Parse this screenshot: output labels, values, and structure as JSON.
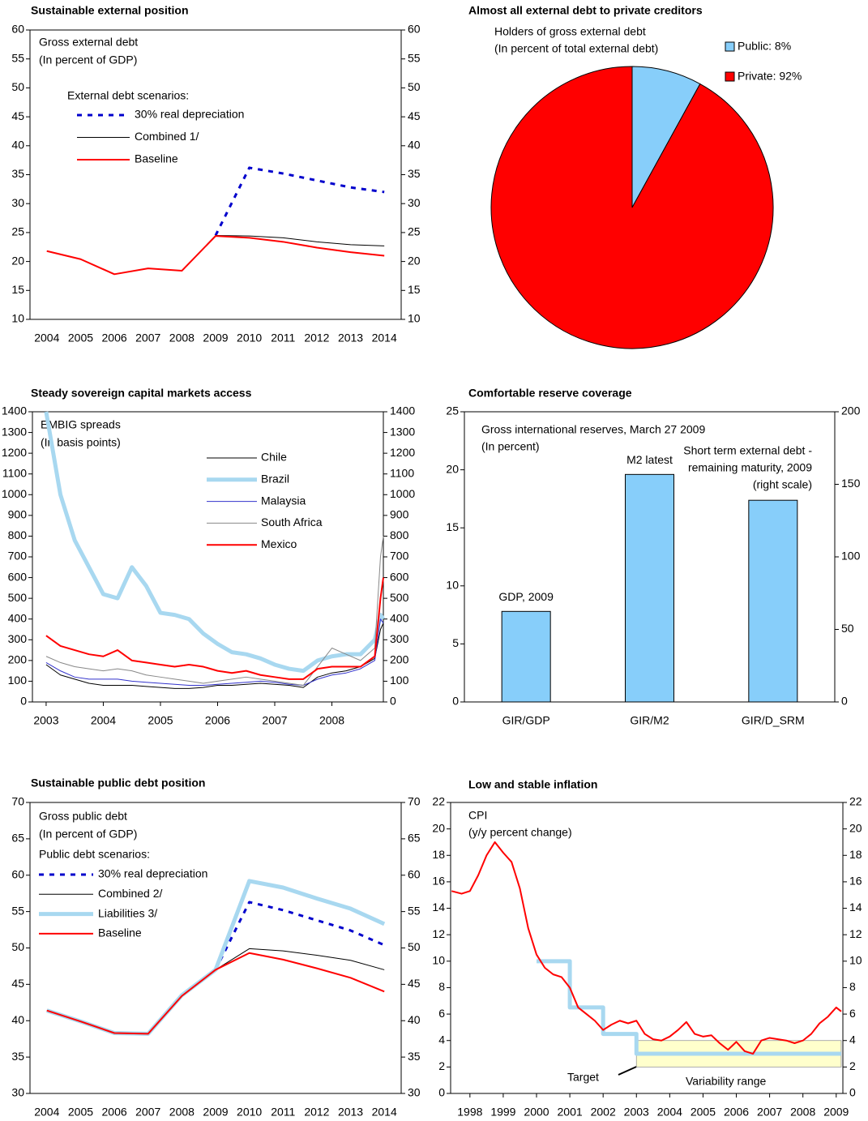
{
  "chart_data": [
    {
      "type": "line",
      "title": "Sustainable external position",
      "annotations": [
        "Gross external debt",
        "(In percent of GDP)",
        "External debt  scenarios:"
      ],
      "categories": [
        "2004",
        "2005",
        "2006",
        "2007",
        "2008",
        "2009",
        "2010",
        "2011",
        "2012",
        "2013",
        "2014"
      ],
      "ylim": [
        10,
        60
      ],
      "yticks": [
        10,
        15,
        20,
        25,
        30,
        35,
        40,
        45,
        50,
        55,
        60
      ],
      "y2lim": [
        10,
        60
      ],
      "y2ticks": [
        10,
        15,
        20,
        25,
        30,
        35,
        40,
        45,
        50,
        55,
        60
      ],
      "series": [
        {
          "name": "30% real depreciation",
          "color": "#0000cc",
          "style": "dashed",
          "values": [
            null,
            null,
            null,
            null,
            null,
            24.5,
            36.2,
            35.2,
            34.0,
            32.8,
            32.0
          ]
        },
        {
          "name": "Combined 1/",
          "color": "#000000",
          "style": "thin",
          "values": [
            21.8,
            20.4,
            17.8,
            18.8,
            18.4,
            24.5,
            24.4,
            24.1,
            23.4,
            22.9,
            22.7
          ]
        },
        {
          "name": "Baseline",
          "color": "#ff0000",
          "style": "medium",
          "values": [
            21.8,
            20.4,
            17.8,
            18.8,
            18.4,
            24.4,
            24.1,
            23.4,
            22.4,
            21.6,
            21.0
          ]
        }
      ]
    },
    {
      "type": "pie",
      "title": "Almost all external debt to private creditors",
      "annotations": [
        "Holders of gross external debt",
        "(In percent of total external debt)"
      ],
      "categories": [
        "Public: 8%",
        "Private: 92%"
      ],
      "values": [
        8,
        92
      ],
      "colors": [
        "#87cefa",
        "#ff0000"
      ]
    },
    {
      "type": "line",
      "title": "Steady sovereign capital markets access",
      "annotations": [
        "EMBIG spreads",
        "(In basis points)"
      ],
      "x": [
        2003.0,
        2003.25,
        2003.5,
        2003.75,
        2004.0,
        2004.25,
        2004.5,
        2004.75,
        2005.0,
        2005.25,
        2005.5,
        2005.75,
        2006.0,
        2006.25,
        2006.5,
        2006.75,
        2007.0,
        2007.25,
        2007.5,
        2007.75,
        2008.0,
        2008.25,
        2008.5,
        2008.75,
        2008.85,
        2008.9
      ],
      "xlim": [
        2002.76,
        2008.9
      ],
      "xticks": [
        2003,
        2004,
        2005,
        2006,
        2007,
        2008
      ],
      "ylim": [
        0,
        1400
      ],
      "yticks": [
        0,
        100,
        200,
        300,
        400,
        500,
        600,
        700,
        800,
        900,
        1000,
        1100,
        1200,
        1300,
        1400
      ],
      "y2lim": [
        0,
        1400
      ],
      "y2ticks": [
        0,
        100,
        200,
        300,
        400,
        500,
        600,
        700,
        800,
        900,
        1000,
        1100,
        1200,
        1300,
        1400
      ],
      "series": [
        {
          "name": "Chile",
          "color": "#000000",
          "style": "thin",
          "values": [
            180,
            130,
            110,
            90,
            80,
            80,
            80,
            75,
            70,
            65,
            65,
            70,
            80,
            80,
            85,
            90,
            85,
            80,
            70,
            120,
            140,
            150,
            170,
            210,
            350,
            380
          ]
        },
        {
          "name": "Brazil",
          "color": "#a8d8f0",
          "style": "thick",
          "values": [
            1400,
            1000,
            780,
            650,
            520,
            500,
            650,
            560,
            430,
            420,
            400,
            330,
            280,
            240,
            230,
            210,
            180,
            160,
            150,
            200,
            220,
            230,
            230,
            300,
            420,
            400
          ]
        },
        {
          "name": "Malaysia",
          "color": "#3333cc",
          "style": "thin",
          "values": [
            190,
            150,
            120,
            110,
            110,
            110,
            100,
            95,
            90,
            85,
            80,
            80,
            85,
            90,
            95,
            100,
            95,
            85,
            80,
            110,
            130,
            140,
            160,
            200,
            400,
            380
          ]
        },
        {
          "name": "South Africa",
          "color": "#888888",
          "style": "thin",
          "values": [
            220,
            190,
            170,
            160,
            150,
            160,
            150,
            130,
            120,
            110,
            100,
            90,
            100,
            110,
            120,
            110,
            100,
            90,
            80,
            170,
            260,
            230,
            200,
            260,
            700,
            800
          ]
        },
        {
          "name": "Mexico",
          "color": "#ff0000",
          "style": "medium",
          "values": [
            320,
            270,
            250,
            230,
            220,
            250,
            200,
            190,
            180,
            170,
            180,
            170,
            150,
            140,
            150,
            130,
            120,
            110,
            110,
            160,
            170,
            170,
            170,
            220,
            500,
            600
          ]
        }
      ]
    },
    {
      "type": "bar",
      "title": "Comfortable reserve coverage",
      "annotations": [
        "Gross international reserves, March 27 2009",
        "(In percent)",
        "Short term external debt -",
        "remaining maturity, 2009",
        "(right scale)"
      ],
      "bar_labels": [
        "GDP, 2009",
        "M2 latest",
        null
      ],
      "categories": [
        "GIR/GDP",
        "GIR/M2",
        "GIR/D_SRM"
      ],
      "ylim": [
        0,
        25
      ],
      "yticks": [
        0,
        5,
        10,
        15,
        20,
        25
      ],
      "y2lim": [
        0,
        200
      ],
      "y2ticks": [
        0,
        50,
        100,
        150,
        200
      ],
      "series": [
        {
          "color": "#87cefa",
          "values": [
            7.8,
            19.6,
            null
          ]
        },
        {
          "color": "#87cefa",
          "axis": "y2",
          "values": [
            null,
            null,
            139
          ]
        }
      ]
    },
    {
      "type": "line",
      "title": "Sustainable public debt position",
      "annotations": [
        "Gross public debt",
        "(In percent of GDP)",
        "Public debt scenarios:"
      ],
      "categories": [
        "2004",
        "2005",
        "2006",
        "2007",
        "2008",
        "2009",
        "2010",
        "2011",
        "2012",
        "2013",
        "2014"
      ],
      "ylim": [
        30,
        70
      ],
      "yticks": [
        30,
        35,
        40,
        45,
        50,
        55,
        60,
        65,
        70
      ],
      "y2lim": [
        30,
        70
      ],
      "y2ticks": [
        30,
        35,
        40,
        45,
        50,
        55,
        60,
        65,
        70
      ],
      "series": [
        {
          "name": "30% real depreciation",
          "color": "#0000cc",
          "style": "dashed",
          "values": [
            null,
            null,
            null,
            null,
            null,
            47.0,
            56.3,
            55.2,
            53.8,
            52.4,
            50.4
          ]
        },
        {
          "name": "Combined 2/",
          "color": "#000000",
          "style": "thin",
          "values": [
            41.4,
            39.9,
            38.3,
            38.2,
            43.5,
            47.0,
            49.9,
            49.6,
            49.0,
            48.3,
            47.0
          ]
        },
        {
          "name": "Liabilities 3/",
          "color": "#a8d8f0",
          "style": "thick",
          "values": [
            41.4,
            39.9,
            38.3,
            38.2,
            43.5,
            47.0,
            59.2,
            58.3,
            56.8,
            55.4,
            53.3
          ]
        },
        {
          "name": "Baseline",
          "color": "#ff0000",
          "style": "medium",
          "values": [
            41.4,
            39.9,
            38.3,
            38.2,
            43.4,
            47.0,
            49.3,
            48.4,
            47.2,
            45.9,
            44.0
          ]
        }
      ]
    },
    {
      "type": "line",
      "title": "Low and stable inflation",
      "annotations": [
        "CPI",
        "(y/y percent change)",
        "Target",
        "Variability range"
      ],
      "xlim": [
        1997.42,
        2009.2
      ],
      "xticks": [
        1998,
        1999,
        2000,
        2001,
        2002,
        2003,
        2004,
        2005,
        2006,
        2007,
        2008,
        2009
      ],
      "ylim": [
        0,
        22
      ],
      "yticks": [
        0,
        2,
        4,
        6,
        8,
        10,
        12,
        14,
        16,
        18,
        20,
        22
      ],
      "y2lim": [
        0,
        22
      ],
      "y2ticks": [
        0,
        2,
        4,
        6,
        8,
        10,
        12,
        14,
        16,
        18,
        20,
        22
      ],
      "band": {
        "x": [
          2003,
          2009.15
        ],
        "range": [
          2,
          4
        ],
        "color": "#ffffcc"
      },
      "series": [
        {
          "color": "#a8d8f0",
          "style": "thick",
          "x": [
            2000,
            2001,
            2001,
            2002,
            2002,
            2003,
            2003,
            2009.15
          ],
          "values": [
            10,
            10,
            6.5,
            6.5,
            4.5,
            4.5,
            3,
            3
          ]
        },
        {
          "color": "#ff0000",
          "style": "medium",
          "x": [
            1997.45,
            1997.75,
            1998.0,
            1998.25,
            1998.5,
            1998.75,
            1999.0,
            1999.25,
            1999.5,
            1999.75,
            2000.0,
            2000.25,
            2000.5,
            2000.75,
            2001.0,
            2001.25,
            2001.5,
            2001.75,
            2002.0,
            2002.25,
            2002.5,
            2002.75,
            2003.0,
            2003.25,
            2003.5,
            2003.75,
            2004.0,
            2004.25,
            2004.5,
            2004.75,
            2005.0,
            2005.25,
            2005.5,
            2005.75,
            2006.0,
            2006.25,
            2006.5,
            2006.75,
            2007.0,
            2007.25,
            2007.5,
            2007.75,
            2008.0,
            2008.25,
            2008.5,
            2008.75,
            2009.0,
            2009.15
          ],
          "values": [
            15.3,
            15.1,
            15.3,
            16.5,
            18.0,
            19.0,
            18.2,
            17.5,
            15.5,
            12.5,
            10.5,
            9.5,
            9.0,
            8.8,
            8.0,
            6.5,
            6.0,
            5.5,
            4.8,
            5.2,
            5.5,
            5.3,
            5.5,
            4.5,
            4.1,
            4.0,
            4.3,
            4.8,
            5.4,
            4.5,
            4.3,
            4.4,
            3.8,
            3.3,
            3.9,
            3.2,
            3.0,
            4.0,
            4.2,
            4.1,
            4.0,
            3.8,
            4.0,
            4.5,
            5.3,
            5.8,
            6.5,
            6.2
          ]
        }
      ]
    }
  ]
}
